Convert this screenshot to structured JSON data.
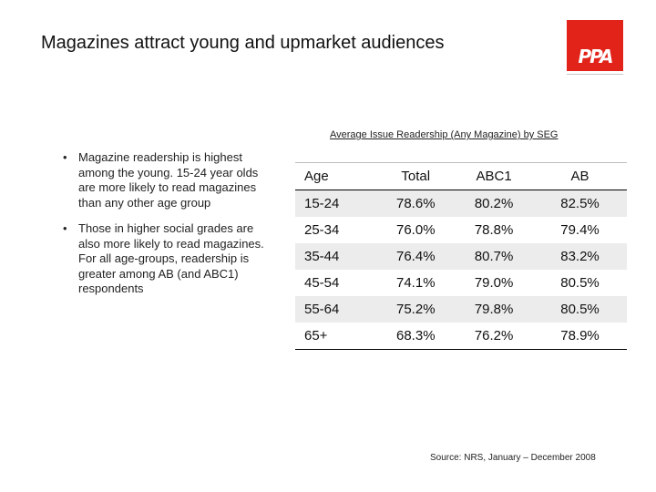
{
  "title": "Magazines attract young and upmarket audiences",
  "logo": {
    "text": "PPA",
    "color": "#e2231a"
  },
  "bullets": [
    "Magazine readership is highest among the young. 15-24 year olds are more likely to read magazines than any other age group",
    "Those in higher social grades are also more likely to read magazines. For all age-groups, readership is greater among AB (and ABC1) respondents"
  ],
  "table": {
    "caption": "Average Issue Readership (Any Magazine) by SEG",
    "headers": [
      "Age",
      "Total",
      "ABC1",
      "AB"
    ],
    "rows": [
      [
        "15-24",
        "78.6%",
        "80.2%",
        "82.5%"
      ],
      [
        "25-34",
        "76.0%",
        "78.8%",
        "79.4%"
      ],
      [
        "35-44",
        "76.4%",
        "80.7%",
        "83.2%"
      ],
      [
        "45-54",
        "74.1%",
        "79.0%",
        "80.5%"
      ],
      [
        "55-64",
        "75.2%",
        "79.8%",
        "80.5%"
      ],
      [
        "65+",
        "68.3%",
        "76.2%",
        "78.9%"
      ]
    ]
  },
  "source": "Source: NRS, January – December 2008"
}
